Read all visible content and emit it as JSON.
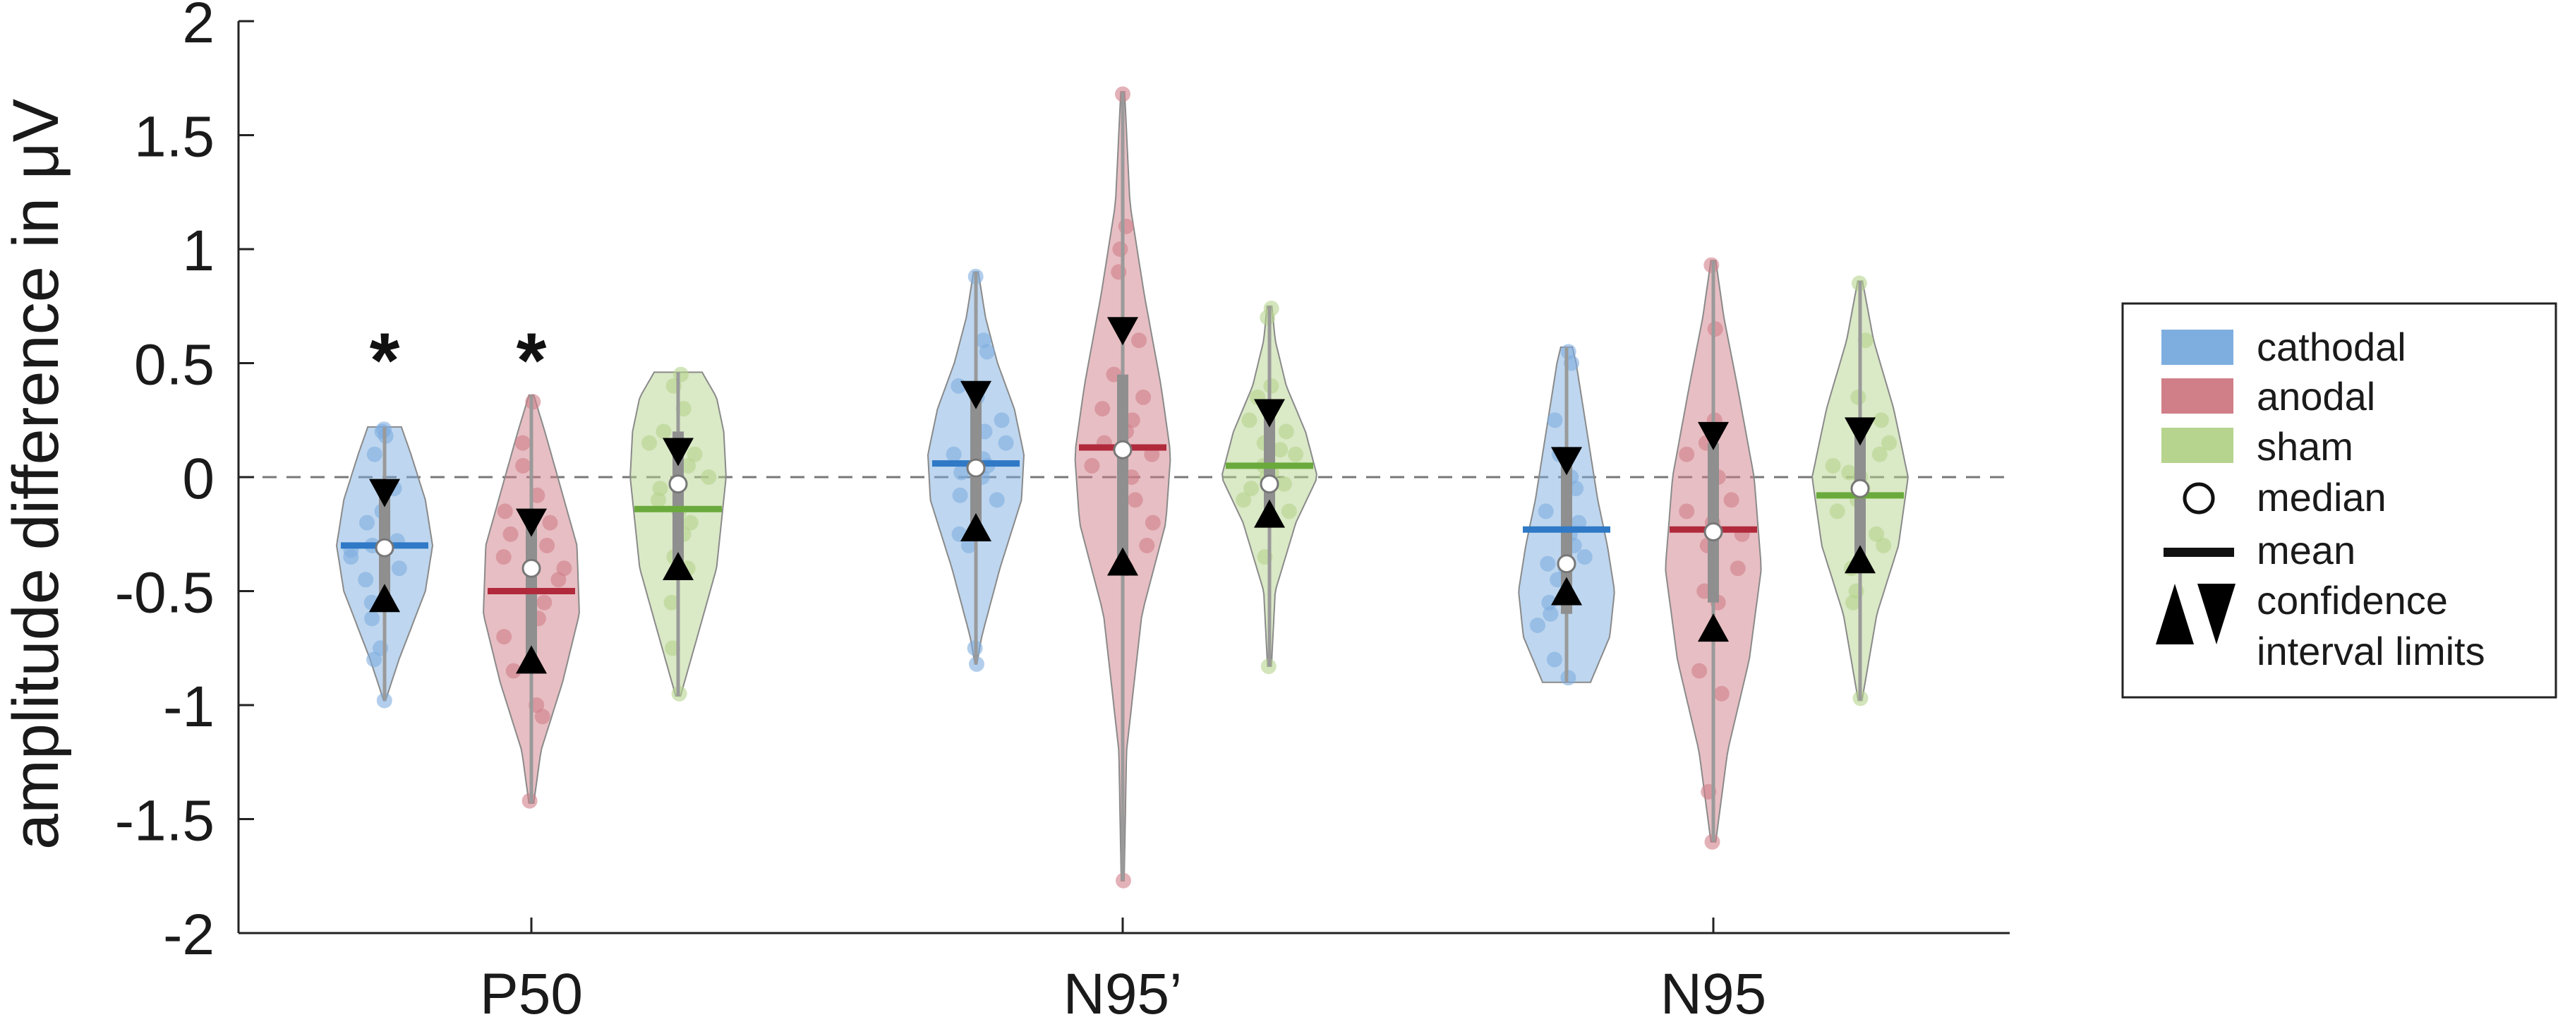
{
  "chart_data": {
    "type": "violin",
    "ylabel": "amplitude difference in μV",
    "xlabel": "",
    "ylim": [
      -2,
      2
    ],
    "yticks": [
      "-2",
      "-1.5",
      "-1",
      "-0.5",
      "0",
      "0.5",
      "1",
      "1.5",
      "2"
    ],
    "categories": [
      "P50",
      "N95’",
      "N95"
    ],
    "reference_line": 0,
    "legend_position": "right",
    "legend": [
      "cathodal",
      "anodal",
      "sham",
      "median",
      "mean",
      "confidence",
      "interval limits"
    ],
    "colors": {
      "cathodal": "#7eaee0",
      "anodal": "#d07e88",
      "sham": "#b6d48e",
      "cathodal_mean": "#2f79c6",
      "anodal_mean": "#b02a3c",
      "sham_mean": "#6aaa3c"
    },
    "series": [
      {
        "name": "cathodal",
        "groups": [
          {
            "category": "P50",
            "min": -0.98,
            "max": 0.22,
            "q1": -0.55,
            "q3": -0.08,
            "median": -0.31,
            "mean": -0.3,
            "ci_low": -0.53,
            "ci_high": -0.07,
            "points": [
              -0.98,
              -0.8,
              -0.75,
              -0.62,
              -0.55,
              -0.45,
              -0.4,
              -0.35,
              -0.32,
              -0.3,
              -0.28,
              -0.2,
              -0.15,
              -0.05,
              0.1,
              0.18,
              0.2,
              0.21
            ],
            "shape": [
              [
                -0.98,
                0.02
              ],
              [
                -0.8,
                0.3
              ],
              [
                -0.5,
                0.85
              ],
              [
                -0.3,
                1.0
              ],
              [
                -0.1,
                0.85
              ],
              [
                0.1,
                0.55
              ],
              [
                0.22,
                0.35
              ]
            ]
          },
          {
            "category": "N95’",
            "min": -0.82,
            "max": 0.9,
            "q1": -0.2,
            "q3": 0.38,
            "median": 0.04,
            "mean": 0.06,
            "ci_low": -0.22,
            "ci_high": 0.36,
            "points": [
              -0.82,
              -0.75,
              -0.3,
              -0.25,
              -0.1,
              -0.08,
              0.0,
              0.02,
              0.05,
              0.08,
              0.1,
              0.15,
              0.2,
              0.25,
              0.35,
              0.4,
              0.55,
              0.6,
              0.88
            ],
            "shape": [
              [
                -0.82,
                0.02
              ],
              [
                -0.7,
                0.12
              ],
              [
                -0.4,
                0.5
              ],
              [
                -0.1,
                0.95
              ],
              [
                0.1,
                1.0
              ],
              [
                0.3,
                0.8
              ],
              [
                0.5,
                0.45
              ],
              [
                0.7,
                0.2
              ],
              [
                0.9,
                0.05
              ]
            ]
          },
          {
            "category": "N95",
            "min": -0.9,
            "max": 0.57,
            "q1": -0.6,
            "q3": 0.1,
            "median": -0.38,
            "mean": -0.23,
            "ci_low": -0.5,
            "ci_high": 0.07,
            "points": [
              -0.88,
              -0.8,
              -0.65,
              -0.6,
              -0.55,
              -0.45,
              -0.4,
              -0.38,
              -0.35,
              -0.3,
              -0.25,
              -0.2,
              -0.15,
              -0.05,
              0.0,
              0.1,
              0.25,
              0.5,
              0.55
            ],
            "shape": [
              [
                -0.9,
                0.5
              ],
              [
                -0.7,
                0.9
              ],
              [
                -0.5,
                1.0
              ],
              [
                -0.3,
                0.85
              ],
              [
                -0.1,
                0.65
              ],
              [
                0.1,
                0.5
              ],
              [
                0.3,
                0.35
              ],
              [
                0.5,
                0.2
              ],
              [
                0.57,
                0.12
              ]
            ]
          }
        ]
      },
      {
        "name": "anodal",
        "groups": [
          {
            "category": "P50",
            "min": -1.43,
            "max": 0.36,
            "q1": -0.8,
            "q3": -0.18,
            "median": -0.4,
            "mean": -0.5,
            "ci_low": -0.8,
            "ci_high": -0.2,
            "points": [
              -1.42,
              -1.05,
              -1.0,
              -0.85,
              -0.7,
              -0.62,
              -0.55,
              -0.45,
              -0.4,
              -0.35,
              -0.3,
              -0.25,
              -0.2,
              -0.15,
              -0.08,
              0.05,
              0.15,
              0.33
            ],
            "shape": [
              [
                -1.43,
                0.05
              ],
              [
                -1.2,
                0.2
              ],
              [
                -0.9,
                0.65
              ],
              [
                -0.6,
                1.0
              ],
              [
                -0.3,
                0.95
              ],
              [
                0.0,
                0.55
              ],
              [
                0.2,
                0.28
              ],
              [
                0.36,
                0.05
              ]
            ]
          },
          {
            "category": "N95’",
            "min": -1.77,
            "max": 1.69,
            "q1": -0.35,
            "q3": 0.45,
            "median": 0.12,
            "mean": 0.13,
            "ci_low": -0.37,
            "ci_high": 0.64,
            "points": [
              -1.77,
              -0.4,
              -0.3,
              -0.2,
              -0.1,
              0.0,
              0.05,
              0.1,
              0.15,
              0.2,
              0.25,
              0.3,
              0.35,
              0.45,
              0.6,
              0.9,
              1.0,
              1.1,
              1.68
            ],
            "shape": [
              [
                -1.77,
                0.03
              ],
              [
                -1.2,
                0.08
              ],
              [
                -0.6,
                0.4
              ],
              [
                -0.2,
                0.9
              ],
              [
                0.1,
                1.0
              ],
              [
                0.4,
                0.8
              ],
              [
                0.8,
                0.45
              ],
              [
                1.2,
                0.15
              ],
              [
                1.69,
                0.04
              ]
            ]
          },
          {
            "category": "N95",
            "min": -1.6,
            "max": 0.95,
            "q1": -0.55,
            "q3": 0.15,
            "median": -0.24,
            "mean": -0.23,
            "ci_low": -0.66,
            "ci_high": 0.18,
            "points": [
              -1.6,
              -1.38,
              -0.95,
              -0.85,
              -0.55,
              -0.5,
              -0.4,
              -0.3,
              -0.25,
              -0.2,
              -0.15,
              -0.1,
              0.0,
              0.1,
              0.15,
              0.25,
              0.65,
              0.93
            ],
            "shape": [
              [
                -1.6,
                0.05
              ],
              [
                -1.2,
                0.3
              ],
              [
                -0.8,
                0.75
              ],
              [
                -0.4,
                1.0
              ],
              [
                0.0,
                0.85
              ],
              [
                0.4,
                0.5
              ],
              [
                0.7,
                0.22
              ],
              [
                0.95,
                0.05
              ]
            ]
          }
        ]
      },
      {
        "name": "sham",
        "groups": [
          {
            "category": "P50",
            "min": -0.96,
            "max": 0.46,
            "q1": -0.4,
            "q3": 0.2,
            "median": -0.03,
            "mean": -0.14,
            "ci_low": -0.39,
            "ci_high": 0.11,
            "points": [
              -0.95,
              -0.75,
              -0.55,
              -0.4,
              -0.35,
              -0.25,
              -0.2,
              -0.15,
              -0.1,
              -0.05,
              0.0,
              0.05,
              0.1,
              0.15,
              0.2,
              0.3,
              0.4,
              0.45
            ],
            "shape": [
              [
                -0.96,
                0.05
              ],
              [
                -0.7,
                0.4
              ],
              [
                -0.4,
                0.8
              ],
              [
                0.0,
                1.0
              ],
              [
                0.2,
                0.95
              ],
              [
                0.35,
                0.8
              ],
              [
                0.46,
                0.5
              ]
            ]
          },
          {
            "category": "N95’",
            "min": -0.83,
            "max": 0.75,
            "q1": -0.15,
            "q3": 0.3,
            "median": -0.03,
            "mean": 0.05,
            "ci_low": -0.16,
            "ci_high": 0.28,
            "points": [
              -0.83,
              -0.35,
              -0.15,
              -0.1,
              -0.05,
              -0.03,
              0.0,
              0.02,
              0.05,
              0.1,
              0.12,
              0.15,
              0.2,
              0.25,
              0.35,
              0.4,
              0.7,
              0.74
            ],
            "shape": [
              [
                -0.83,
                0.04
              ],
              [
                -0.5,
                0.12
              ],
              [
                -0.2,
                0.55
              ],
              [
                0.0,
                1.0
              ],
              [
                0.2,
                0.75
              ],
              [
                0.4,
                0.35
              ],
              [
                0.6,
                0.12
              ],
              [
                0.75,
                0.05
              ]
            ]
          },
          {
            "category": "N95",
            "min": -0.98,
            "max": 0.86,
            "q1": -0.4,
            "q3": 0.2,
            "median": -0.05,
            "mean": -0.08,
            "ci_low": -0.36,
            "ci_high": 0.2,
            "points": [
              -0.97,
              -0.55,
              -0.5,
              -0.4,
              -0.3,
              -0.25,
              -0.15,
              -0.1,
              -0.05,
              0.0,
              0.02,
              0.05,
              0.1,
              0.15,
              0.25,
              0.35,
              0.6,
              0.85
            ],
            "shape": [
              [
                -0.98,
                0.04
              ],
              [
                -0.6,
                0.35
              ],
              [
                -0.3,
                0.8
              ],
              [
                0.0,
                1.0
              ],
              [
                0.3,
                0.7
              ],
              [
                0.6,
                0.28
              ],
              [
                0.86,
                0.05
              ]
            ]
          }
        ]
      }
    ],
    "annotations": [
      {
        "text": "*",
        "category": "P50",
        "series": "cathodal",
        "y": 0.55
      },
      {
        "text": "*",
        "category": "P50",
        "series": "anodal",
        "y": 0.55
      }
    ]
  }
}
